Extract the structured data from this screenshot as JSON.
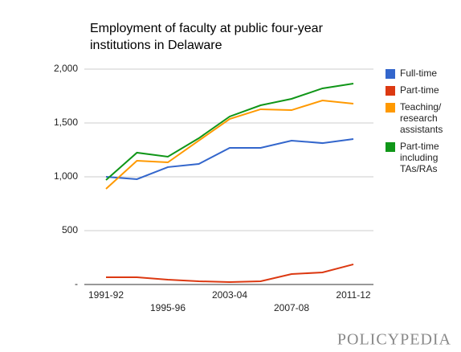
{
  "chart_data": {
    "type": "line",
    "title_lines": [
      "Employment of faculty at public four-year",
      "institutions in Delaware"
    ],
    "categories": [
      "1991-92",
      null,
      "1995-96",
      null,
      "2003-04",
      null,
      "2007-08",
      null,
      "2011-12"
    ],
    "series": [
      {
        "name": [
          "Full-time"
        ],
        "color": "#3366cc",
        "values": [
          1000,
          978,
          1090,
          1119,
          1269,
          1269,
          1336,
          1313,
          1351
        ]
      },
      {
        "name": [
          "Part-time"
        ],
        "color": "#dc3912",
        "values": [
          67,
          67,
          45,
          30,
          22,
          30,
          97,
          112,
          187
        ]
      },
      {
        "name": [
          "Teaching/",
          "research",
          "assistants"
        ],
        "color": "#ff9900",
        "values": [
          888,
          1149,
          1134,
          1336,
          1537,
          1627,
          1619,
          1709,
          1679
        ]
      },
      {
        "name": [
          "Part-time",
          "including",
          "TAs/RAs"
        ],
        "color": "#109618",
        "values": [
          970,
          1224,
          1187,
          1358,
          1560,
          1664,
          1724,
          1821,
          1866
        ]
      }
    ],
    "ylim": [
      0,
      2000
    ],
    "yticks": [
      {
        "value": 0,
        "label": "-"
      },
      500,
      {
        "value": 1000,
        "label": "1,000"
      },
      {
        "value": 1500,
        "label": "1,500"
      },
      {
        "value": 2000,
        "label": "2,000"
      }
    ],
    "grid": true,
    "legend": "right",
    "logo": "POLICYPEDIA"
  }
}
